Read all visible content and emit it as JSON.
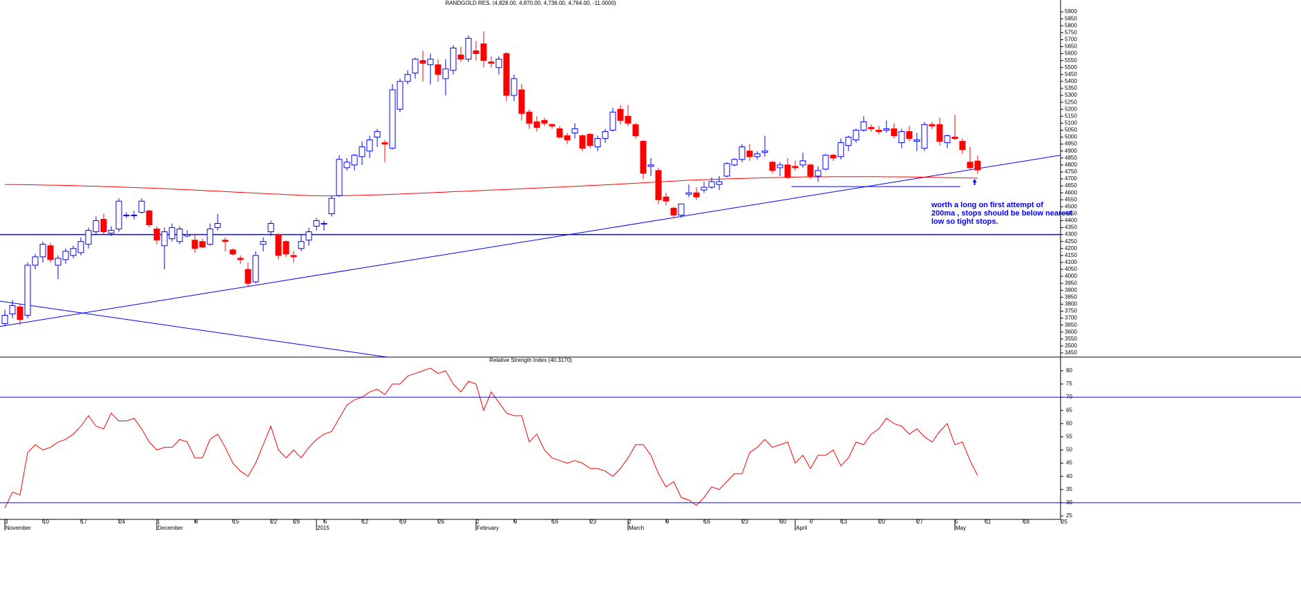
{
  "chart_data": [
    {
      "type": "candlestick",
      "title": "RANDGOLD RES. (4,828.00, 4,870.00, 4,736.00, 4,764.00, -11.0000)",
      "up_color": "#0000ff",
      "down_color": "#ff0000",
      "ohlc": [
        [
          3660,
          3760,
          3640,
          3720
        ],
        [
          3730,
          3830,
          3700,
          3790
        ],
        [
          3780,
          3800,
          3650,
          3690
        ],
        [
          3720,
          4100,
          3700,
          4080
        ],
        [
          4080,
          4160,
          4050,
          4140
        ],
        [
          4140,
          4250,
          4100,
          4230
        ],
        [
          4220,
          4240,
          4100,
          4120
        ],
        [
          4080,
          4150,
          3980,
          4130
        ],
        [
          4120,
          4200,
          4090,
          4180
        ],
        [
          4150,
          4220,
          4130,
          4200
        ],
        [
          4170,
          4280,
          4150,
          4250
        ],
        [
          4230,
          4350,
          4200,
          4330
        ],
        [
          4320,
          4430,
          4300,
          4400
        ],
        [
          4410,
          4450,
          4300,
          4320
        ],
        [
          4310,
          4360,
          4290,
          4330
        ],
        [
          4340,
          4560,
          4320,
          4540
        ],
        [
          4440,
          4460,
          4420,
          4440
        ],
        [
          4440,
          4470,
          4410,
          4440
        ],
        [
          4460,
          4560,
          4450,
          4540
        ],
        [
          4470,
          4480,
          4350,
          4370
        ],
        [
          4340,
          4360,
          4230,
          4260
        ],
        [
          4220,
          4350,
          4050,
          4320
        ],
        [
          4270,
          4380,
          4250,
          4350
        ],
        [
          4250,
          4360,
          4230,
          4340
        ],
        [
          4290,
          4330,
          4280,
          4300
        ],
        [
          4260,
          4300,
          4170,
          4200
        ],
        [
          4250,
          4270,
          4200,
          4210
        ],
        [
          4230,
          4380,
          4220,
          4340
        ],
        [
          4350,
          4450,
          4330,
          4380
        ],
        [
          4260,
          4280,
          4180,
          4250
        ],
        [
          4190,
          4200,
          4150,
          4160
        ],
        [
          4130,
          4150,
          4090,
          4120
        ],
        [
          4050,
          4100,
          3930,
          3950
        ],
        [
          3960,
          4180,
          3950,
          4150
        ],
        [
          4230,
          4280,
          4180,
          4250
        ],
        [
          4320,
          4400,
          4290,
          4380
        ],
        [
          4300,
          4310,
          4120,
          4150
        ],
        [
          4250,
          4260,
          4140,
          4160
        ],
        [
          4150,
          4180,
          4100,
          4140
        ],
        [
          4200,
          4300,
          4180,
          4250
        ],
        [
          4260,
          4350,
          4220,
          4320
        ],
        [
          4360,
          4420,
          4330,
          4400
        ],
        [
          4380,
          4400,
          4330,
          4380
        ],
        [
          4450,
          4580,
          4430,
          4560
        ],
        [
          4580,
          4870,
          4570,
          4840
        ],
        [
          4780,
          4850,
          4760,
          4820
        ],
        [
          4800,
          4880,
          4760,
          4870
        ],
        [
          4860,
          4970,
          4800,
          4930
        ],
        [
          4900,
          5010,
          4850,
          4980
        ],
        [
          5000,
          5060,
          4930,
          5040
        ],
        [
          4960,
          4980,
          4820,
          4950
        ],
        [
          4920,
          5380,
          4910,
          5340
        ],
        [
          5200,
          5420,
          5180,
          5400
        ],
        [
          5400,
          5480,
          5380,
          5450
        ],
        [
          5460,
          5570,
          5420,
          5560
        ],
        [
          5550,
          5620,
          5400,
          5530
        ],
        [
          5520,
          5600,
          5380,
          5560
        ],
        [
          5520,
          5560,
          5400,
          5450
        ],
        [
          5420,
          5560,
          5300,
          5490
        ],
        [
          5480,
          5660,
          5450,
          5640
        ],
        [
          5590,
          5650,
          5540,
          5560
        ],
        [
          5560,
          5730,
          5540,
          5710
        ],
        [
          5620,
          5690,
          5550,
          5600
        ],
        [
          5670,
          5760,
          5500,
          5550
        ],
        [
          5540,
          5580,
          5500,
          5530
        ],
        [
          5500,
          5580,
          5450,
          5560
        ],
        [
          5600,
          5610,
          5260,
          5300
        ],
        [
          5300,
          5450,
          5260,
          5420
        ],
        [
          5340,
          5380,
          5120,
          5170
        ],
        [
          5180,
          5200,
          5060,
          5100
        ],
        [
          5110,
          5150,
          5040,
          5070
        ],
        [
          5120,
          5140,
          5080,
          5100
        ],
        [
          5090,
          5100,
          5060,
          5080
        ],
        [
          5060,
          5080,
          4990,
          5000
        ],
        [
          5010,
          5030,
          4950,
          4980
        ],
        [
          5030,
          5100,
          4990,
          5060
        ],
        [
          5010,
          5020,
          4900,
          4920
        ],
        [
          5020,
          5030,
          4920,
          4940
        ],
        [
          4930,
          5010,
          4900,
          4990
        ],
        [
          4990,
          5060,
          4960,
          5040
        ],
        [
          5050,
          5210,
          5040,
          5180
        ],
        [
          5200,
          5230,
          5090,
          5120
        ],
        [
          5150,
          5230,
          5080,
          5100
        ],
        [
          5090,
          5100,
          4990,
          5010
        ],
        [
          4970,
          4980,
          4700,
          4740
        ],
        [
          4790,
          4850,
          4720,
          4800
        ],
        [
          4760,
          4780,
          4520,
          4550
        ],
        [
          4570,
          4600,
          4510,
          4540
        ],
        [
          4490,
          4500,
          4420,
          4440
        ],
        [
          4440,
          4520,
          4420,
          4520
        ],
        [
          4590,
          4660,
          4570,
          4600
        ],
        [
          4600,
          4640,
          4550,
          4570
        ],
        [
          4620,
          4680,
          4600,
          4640
        ],
        [
          4640,
          4710,
          4630,
          4680
        ],
        [
          4660,
          4720,
          4620,
          4680
        ],
        [
          4720,
          4820,
          4710,
          4810
        ],
        [
          4800,
          4850,
          4790,
          4840
        ],
        [
          4840,
          4950,
          4820,
          4930
        ],
        [
          4900,
          4950,
          4830,
          4860
        ],
        [
          4860,
          4900,
          4840,
          4880
        ],
        [
          4890,
          5010,
          4860,
          4900
        ],
        [
          4820,
          4830,
          4740,
          4760
        ],
        [
          4780,
          4820,
          4720,
          4800
        ],
        [
          4800,
          4850,
          4700,
          4710
        ],
        [
          4790,
          4830,
          4760,
          4780
        ],
        [
          4800,
          4890,
          4780,
          4830
        ],
        [
          4800,
          4810,
          4700,
          4720
        ],
        [
          4720,
          4790,
          4680,
          4760
        ],
        [
          4770,
          4880,
          4760,
          4870
        ],
        [
          4870,
          4880,
          4830,
          4850
        ],
        [
          4860,
          4990,
          4840,
          4960
        ],
        [
          4940,
          5010,
          4900,
          5000
        ],
        [
          4980,
          5060,
          4960,
          5050
        ],
        [
          5050,
          5150,
          5040,
          5110
        ],
        [
          5070,
          5090,
          5040,
          5060
        ],
        [
          5050,
          5080,
          5020,
          5040
        ],
        [
          5050,
          5120,
          5030,
          5060
        ],
        [
          5060,
          5100,
          4990,
          5010
        ],
        [
          4960,
          5060,
          4920,
          5040
        ],
        [
          5040,
          5080,
          4970,
          4990
        ],
        [
          4970,
          5030,
          4900,
          4980
        ],
        [
          4920,
          5110,
          4900,
          5090
        ],
        [
          5090,
          5110,
          5060,
          5080
        ],
        [
          5090,
          5140,
          4940,
          4970
        ],
        [
          4960,
          5020,
          4920,
          5010
        ],
        [
          5000,
          5160,
          4980,
          4990
        ],
        [
          4970,
          4990,
          4880,
          4910
        ],
        [
          4820,
          4930,
          4770,
          4780
        ],
        [
          4828,
          4870,
          4736,
          4764
        ]
      ],
      "ma_color": "#ff0000",
      "ma": [
        4660,
        4659,
        4659,
        4658,
        4657,
        4656,
        4655,
        4654,
        4653,
        4652,
        4650,
        4648,
        4647,
        4645,
        4644,
        4642,
        4640,
        4638,
        4636,
        4634,
        4632,
        4630,
        4627,
        4625,
        4622,
        4620,
        4617,
        4614,
        4612,
        4609,
        4606,
        4603,
        4600,
        4598,
        4595,
        4592,
        4590,
        4587,
        4585,
        4582,
        4580,
        4579,
        4578,
        4578,
        4579,
        4580,
        4581,
        4582,
        4584,
        4585,
        4587,
        4589,
        4591,
        4594,
        4596,
        4598,
        4600,
        4603,
        4605,
        4608,
        4610,
        4612,
        4615,
        4617,
        4620,
        4622,
        4624,
        4627,
        4629,
        4632,
        4634,
        4636,
        4639,
        4641,
        4644,
        4646,
        4649,
        4652,
        4654,
        4657,
        4660,
        4663,
        4666,
        4669,
        4672,
        4675,
        4678,
        4681,
        4684,
        4687,
        4690,
        4692,
        4694,
        4696,
        4698,
        4700,
        4702,
        4703,
        4705,
        4706,
        4708,
        4709,
        4710,
        4711,
        4713,
        4714,
        4714,
        4715,
        4715,
        4716,
        4716,
        4716,
        4716,
        4716,
        4716,
        4716,
        4715,
        4715,
        4714,
        4714,
        4713,
        4712,
        4711,
        4710,
        4709,
        4708,
        4707,
        4706,
        4705
      ],
      "ylim": [
        3420,
        5985
      ],
      "yticks": [
        3450,
        3500,
        3550,
        3600,
        3650,
        3700,
        3750,
        3800,
        3850,
        3900,
        3950,
        4000,
        4050,
        4100,
        4150,
        4200,
        4250,
        4300,
        4350,
        4400,
        4450,
        4500,
        4550,
        4600,
        4650,
        4700,
        4750,
        4800,
        4850,
        4900,
        4950,
        5000,
        5050,
        5100,
        5150,
        5200,
        5250,
        5300,
        5350,
        5400,
        5450,
        5500,
        5550,
        5600,
        5650,
        5700,
        5750,
        5800,
        5850,
        5900
      ],
      "hlines": [
        4300
      ],
      "line_color": "#0000ff",
      "trendlines": [
        {
          "x": [
            -0.636,
            138.9
          ],
          "y": [
            3640,
            4870
          ]
        },
        {
          "x": [
            -0.636,
            50.27
          ],
          "y": [
            3822,
            3420
          ]
        },
        {
          "x": [
            103.5,
            125.7
          ],
          "y": [
            4645,
            4645
          ]
        }
      ],
      "arrow": {
        "x": 127.6,
        "y": 4700
      },
      "annotation": [
        "worth a long on first attempt of",
        "200ma , stops should be below nearest",
        "low so tight stops."
      ]
    },
    {
      "type": "line",
      "title": "Relative Strength Index (40.3170)",
      "color": "#ff0000",
      "values": [
        28,
        34,
        33,
        49,
        52,
        50,
        51,
        53,
        54,
        56,
        59,
        63,
        59,
        58,
        64,
        61,
        61,
        62,
        58,
        53,
        50,
        51,
        51,
        54,
        53,
        47,
        47,
        54,
        56,
        51,
        45,
        42,
        40,
        45,
        52,
        59,
        50,
        47,
        50,
        47,
        51,
        54,
        56,
        57,
        62,
        67,
        69,
        70,
        72,
        73,
        71,
        75,
        75,
        78,
        79,
        80,
        81,
        79,
        80,
        75,
        72,
        76,
        75,
        65,
        72,
        68,
        64,
        63,
        63,
        53,
        56,
        50,
        47,
        46,
        45,
        46,
        45,
        43,
        43,
        42,
        40,
        43,
        47,
        52,
        52,
        48,
        41,
        36,
        38,
        32,
        31,
        29,
        32,
        36,
        35,
        38,
        41,
        41,
        49,
        51,
        54,
        51,
        52,
        53,
        45,
        48,
        43,
        48,
        48,
        50,
        44,
        47,
        53,
        52,
        56,
        58,
        62,
        60,
        59,
        56,
        58,
        55,
        53,
        57,
        60,
        52,
        53,
        46,
        40.317
      ],
      "ylim": [
        23.7,
        85.2
      ],
      "yticks": [
        25,
        30,
        35,
        40,
        45,
        50,
        55,
        60,
        65,
        70,
        75,
        80
      ],
      "hlines": [
        70,
        30
      ],
      "xticks": [
        {
          "value": 0,
          "label": "3"
        },
        {
          "value": 5,
          "label": "10"
        },
        {
          "value": 10,
          "label": "17"
        },
        {
          "value": 15,
          "label": "24"
        },
        {
          "value": 20,
          "label": "1"
        },
        {
          "value": 25,
          "label": "8"
        },
        {
          "value": 30,
          "label": "15"
        },
        {
          "value": 35,
          "label": "22"
        },
        {
          "value": 38,
          "label": "29"
        },
        {
          "value": 42,
          "label": "5"
        },
        {
          "value": 47,
          "label": "12"
        },
        {
          "value": 52,
          "label": "19"
        },
        {
          "value": 57,
          "label": "26"
        },
        {
          "value": 62,
          "label": "2"
        },
        {
          "value": 67,
          "label": "9"
        },
        {
          "value": 72,
          "label": "16"
        },
        {
          "value": 77,
          "label": "23"
        },
        {
          "value": 82,
          "label": "2"
        },
        {
          "value": 87,
          "label": "9"
        },
        {
          "value": 92,
          "label": "16"
        },
        {
          "value": 97,
          "label": "23"
        },
        {
          "value": 102,
          "label": "30"
        },
        {
          "value": 106,
          "label": "7"
        },
        {
          "value": 110,
          "label": "13"
        },
        {
          "value": 115,
          "label": "20"
        },
        {
          "value": 120,
          "label": "27"
        },
        {
          "value": 125,
          "label": "5"
        },
        {
          "value": 129,
          "label": "11"
        },
        {
          "value": 134,
          "label": "18"
        },
        {
          "value": 139,
          "label": "25"
        }
      ],
      "months": [
        {
          "value": 0,
          "label": "November"
        },
        {
          "value": 20,
          "label": "December"
        },
        {
          "value": 41,
          "label": "2015"
        },
        {
          "value": 62,
          "label": "February"
        },
        {
          "value": 82,
          "label": "March"
        },
        {
          "value": 104,
          "label": "April"
        },
        {
          "value": 125,
          "label": "May"
        }
      ]
    }
  ]
}
